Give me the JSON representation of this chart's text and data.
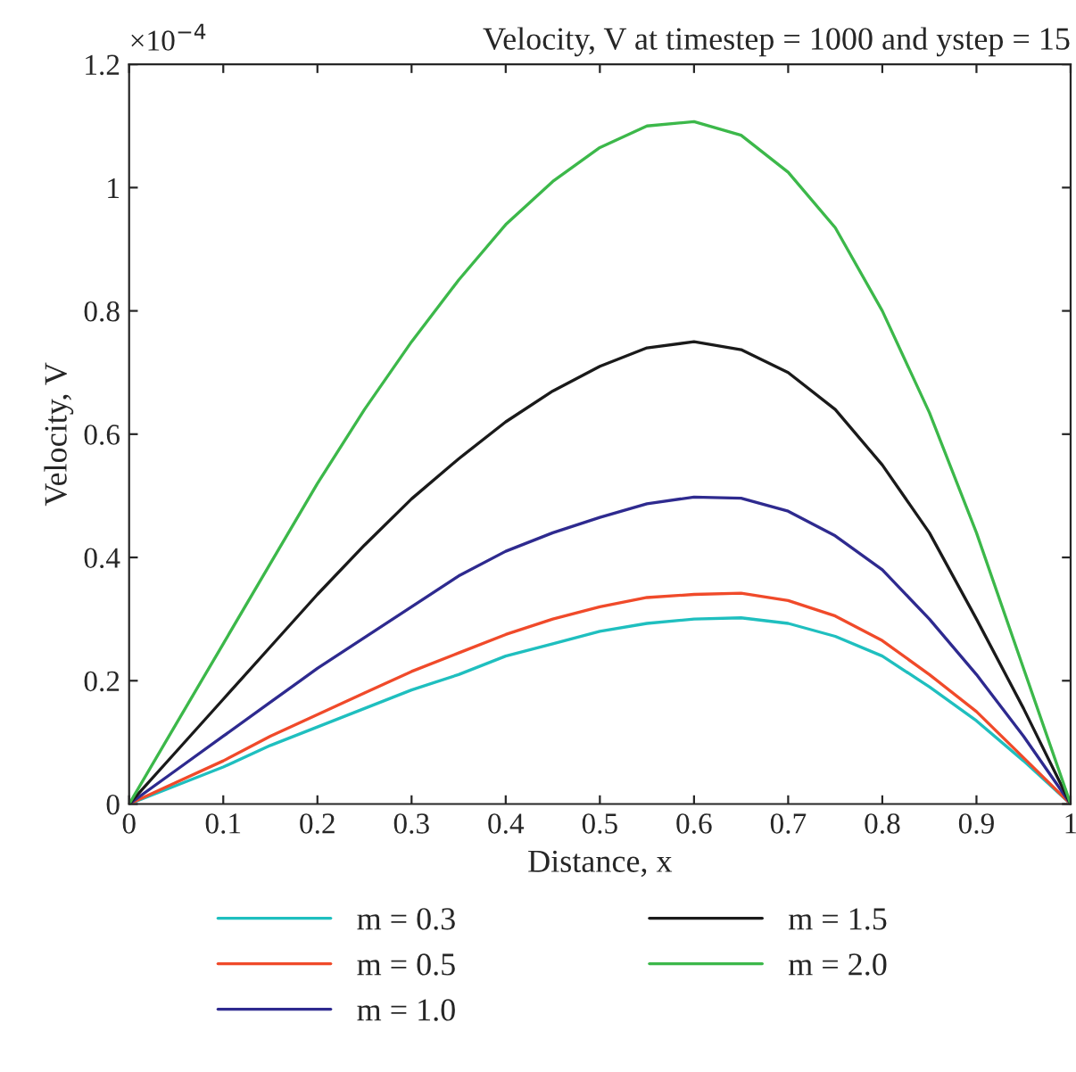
{
  "chart_data": {
    "type": "line",
    "title": "Velocity, V at timestep = 1000 and ystep = 15",
    "xlabel": "Distance, x",
    "ylabel": "Velocity, V",
    "annotations": [
      "×10$^{−4}$"
    ],
    "x": [
      0,
      0.05,
      0.1,
      0.15,
      0.2,
      0.25,
      0.3,
      0.35,
      0.4,
      0.45,
      0.5,
      0.55,
      0.6,
      0.65,
      0.7,
      0.75,
      0.8,
      0.85,
      0.9,
      0.95,
      1
    ],
    "series": [
      {
        "name": "m = 0.3",
        "color": "#1fbfbf",
        "values": [
          0,
          0.03,
          0.06,
          0.095,
          0.125,
          0.155,
          0.185,
          0.21,
          0.24,
          0.26,
          0.28,
          0.293,
          0.3,
          0.302,
          0.293,
          0.272,
          0.24,
          0.19,
          0.135,
          0.07,
          0
        ]
      },
      {
        "name": "m = 0.5",
        "color": "#f04a2a",
        "values": [
          0,
          0.035,
          0.07,
          0.11,
          0.145,
          0.18,
          0.215,
          0.245,
          0.275,
          0.3,
          0.32,
          0.335,
          0.34,
          0.342,
          0.33,
          0.305,
          0.265,
          0.21,
          0.15,
          0.075,
          0
        ]
      },
      {
        "name": "m = 1.0",
        "color": "#2e2a8f",
        "values": [
          0,
          0.055,
          0.11,
          0.165,
          0.22,
          0.27,
          0.32,
          0.37,
          0.41,
          0.44,
          0.465,
          0.487,
          0.498,
          0.496,
          0.475,
          0.435,
          0.38,
          0.3,
          0.21,
          0.11,
          0
        ]
      },
      {
        "name": "m = 1.5",
        "color": "#1a1a1a",
        "values": [
          0,
          0.085,
          0.17,
          0.255,
          0.34,
          0.42,
          0.495,
          0.56,
          0.62,
          0.67,
          0.71,
          0.74,
          0.75,
          0.737,
          0.7,
          0.64,
          0.55,
          0.44,
          0.3,
          0.155,
          0
        ]
      },
      {
        "name": "m = 2.0",
        "color": "#3cb84a",
        "values": [
          0,
          0.13,
          0.26,
          0.39,
          0.52,
          0.64,
          0.75,
          0.85,
          0.94,
          1.01,
          1.065,
          1.1,
          1.107,
          1.085,
          1.025,
          0.935,
          0.8,
          0.635,
          0.44,
          0.22,
          0
        ]
      }
    ],
    "xlim": [
      0,
      1
    ],
    "xticks": [
      0,
      0.1,
      0.2,
      0.3,
      0.4,
      0.5,
      0.6,
      0.7,
      0.8,
      0.9,
      1
    ],
    "ylim": [
      0,
      1.2
    ],
    "yticks": [
      0,
      0.2,
      0.4,
      0.6,
      0.8,
      1,
      1.2
    ],
    "grid": false,
    "legend": "bottom",
    "marker": "none",
    "line_style": "solid"
  }
}
